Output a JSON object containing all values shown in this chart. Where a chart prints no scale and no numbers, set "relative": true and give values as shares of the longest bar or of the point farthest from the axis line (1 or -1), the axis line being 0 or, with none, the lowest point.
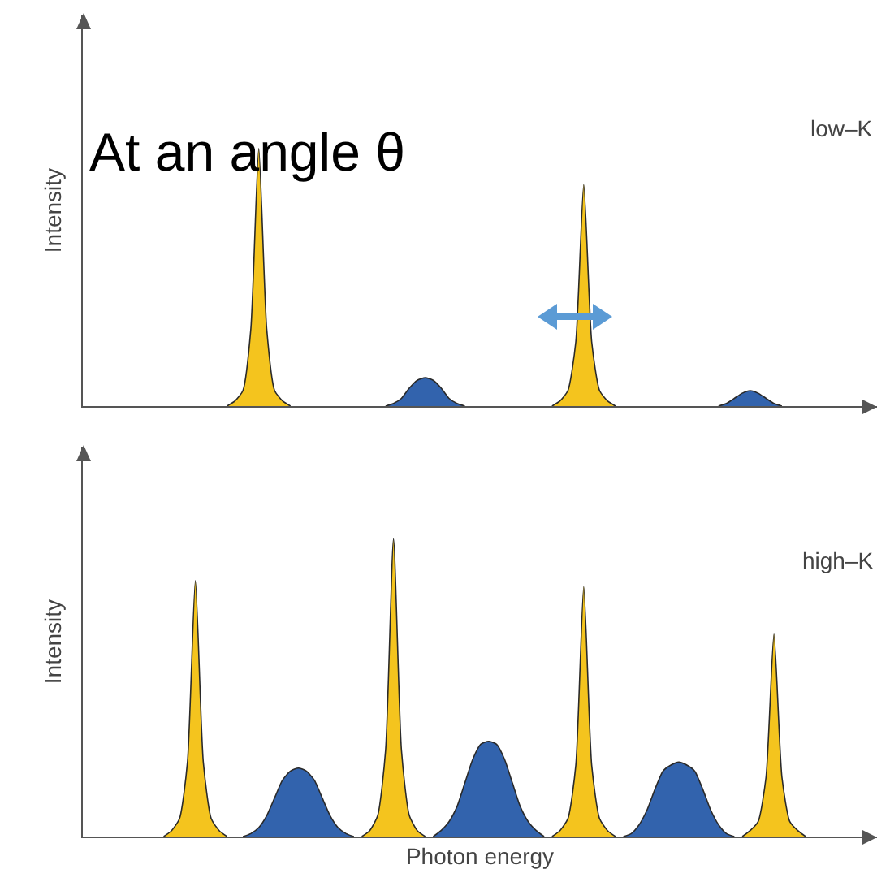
{
  "chart_data": [
    {
      "type": "area",
      "relative": true,
      "ylabel": "Intensity",
      "annotations": [
        "low–K",
        "At an angle θ"
      ],
      "categories": [
        null,
        null,
        null,
        null,
        null,
        null,
        null,
        null,
        null,
        null,
        null,
        null,
        null,
        null,
        null,
        null,
        null,
        null,
        null,
        null,
        null,
        null,
        null,
        null,
        null,
        null,
        null,
        null,
        null,
        null,
        null,
        null,
        null,
        null,
        null,
        null,
        null,
        null,
        null,
        null,
        null,
        null,
        null,
        null,
        null,
        null,
        null,
        null,
        null,
        null,
        null,
        null,
        null,
        null,
        null,
        null,
        null,
        null,
        null,
        null,
        null,
        null,
        null,
        null,
        null,
        null,
        null,
        null,
        null,
        null,
        null,
        null,
        null,
        null,
        null,
        null,
        null,
        null,
        null,
        null,
        null,
        null,
        null,
        null,
        null,
        null,
        null,
        null,
        null,
        null,
        null,
        null,
        null,
        null,
        null,
        null,
        null,
        null,
        null,
        null
      ],
      "series": [
        {
          "color": "#f4c41e",
          "values": [
            null,
            null,
            null,
            null,
            null,
            null,
            null,
            null,
            null,
            null,
            null,
            null,
            null,
            null,
            null,
            null,
            null,
            0,
            0.02,
            0.06,
            0.3,
            1,
            0.3,
            0.06,
            0.02,
            0,
            null,
            null,
            null,
            null,
            null,
            null,
            null,
            null,
            null,
            null,
            null,
            null,
            null,
            null,
            null,
            null,
            null,
            null,
            null,
            null,
            null,
            null,
            null,
            null,
            null,
            null,
            null,
            null,
            null,
            null,
            null,
            null,
            0,
            0.02,
            0.06,
            0.25,
            0.86,
            0.25,
            0.06,
            0.02,
            0,
            null,
            null,
            null,
            null,
            null,
            null,
            null,
            null,
            null,
            null,
            null,
            null,
            null,
            null,
            null,
            null,
            null,
            null,
            null,
            null,
            null,
            null,
            null,
            null,
            null,
            null,
            null,
            null,
            null,
            null,
            null,
            null,
            null
          ]
        },
        {
          "color": "#3263ad",
          "values": [
            null,
            null,
            null,
            null,
            null,
            null,
            null,
            null,
            null,
            null,
            null,
            null,
            null,
            null,
            null,
            null,
            null,
            null,
            null,
            null,
            null,
            null,
            null,
            null,
            null,
            null,
            null,
            null,
            null,
            null,
            null,
            null,
            null,
            null,
            null,
            null,
            null,
            0,
            0.01,
            0.03,
            0.07,
            0.1,
            0.11,
            0.1,
            0.07,
            0.03,
            0.01,
            0,
            null,
            null,
            null,
            null,
            null,
            null,
            null,
            null,
            null,
            null,
            null,
            null,
            null,
            null,
            null,
            null,
            null,
            null,
            null,
            null,
            null,
            null,
            null,
            null,
            null,
            null,
            null,
            null,
            null,
            null,
            null,
            0,
            0.01,
            0.03,
            0.05,
            0.06,
            0.05,
            0.03,
            0.01,
            0,
            null,
            null,
            null,
            null,
            null,
            null,
            null,
            null,
            null,
            null,
            null,
            null
          ]
        }
      ]
    },
    {
      "type": "area",
      "relative": true,
      "ylabel": "Intensity",
      "xlabel": "Photon energy",
      "annotations": [
        "high–K"
      ],
      "categories": [
        null,
        null,
        null,
        null,
        null,
        null,
        null,
        null,
        null,
        null,
        null,
        null,
        null,
        null,
        null,
        null,
        null,
        null,
        null,
        null,
        null,
        null,
        null,
        null,
        null,
        null,
        null,
        null,
        null,
        null,
        null,
        null,
        null,
        null,
        null,
        null,
        null,
        null,
        null,
        null,
        null,
        null,
        null,
        null,
        null,
        null,
        null,
        null,
        null,
        null,
        null,
        null,
        null,
        null,
        null,
        null,
        null,
        null,
        null,
        null,
        null,
        null,
        null,
        null,
        null,
        null,
        null,
        null,
        null,
        null,
        null,
        null,
        null,
        null,
        null,
        null,
        null,
        null,
        null,
        null,
        null,
        null,
        null,
        null,
        null,
        null,
        null,
        null,
        null,
        null,
        null,
        null,
        null,
        null,
        null,
        null,
        null,
        null,
        null,
        null
      ],
      "series": [
        {
          "color": "#f4c41e",
          "values": [
            null,
            null,
            null,
            null,
            null,
            null,
            null,
            null,
            null,
            0,
            0.02,
            0.06,
            0.25,
            0.86,
            0.25,
            0.06,
            0.02,
            0,
            null,
            null,
            null,
            null,
            null,
            null,
            null,
            null,
            null,
            null,
            null,
            null,
            null,
            null,
            null,
            null,
            0,
            0.02,
            0.07,
            0.29,
            1,
            0.29,
            0.07,
            0.02,
            0,
            null,
            null,
            null,
            null,
            null,
            null,
            null,
            null,
            null,
            null,
            null,
            null,
            null,
            null,
            null,
            0,
            0.02,
            0.06,
            0.24,
            0.84,
            0.24,
            0.06,
            0.02,
            0,
            null,
            null,
            null,
            null,
            null,
            null,
            null,
            null,
            null,
            null,
            null,
            null,
            null,
            null,
            null,
            0,
            0.02,
            0.05,
            0.2,
            0.68,
            0.2,
            0.05,
            0.02,
            0,
            null,
            null,
            null,
            null,
            null,
            null,
            null,
            null,
            null
          ]
        },
        {
          "color": "#3263ad",
          "values": [
            null,
            null,
            null,
            null,
            null,
            null,
            null,
            null,
            null,
            null,
            null,
            null,
            null,
            null,
            null,
            null,
            null,
            null,
            null,
            0,
            0.01,
            0.03,
            0.07,
            0.13,
            0.19,
            0.22,
            0.23,
            0.22,
            0.19,
            0.13,
            0.07,
            0.03,
            0.01,
            0,
            null,
            null,
            null,
            null,
            null,
            null,
            null,
            null,
            null,
            0,
            0.02,
            0.05,
            0.1,
            0.18,
            0.26,
            0.31,
            0.32,
            0.31,
            0.26,
            0.18,
            0.1,
            0.05,
            0.02,
            0,
            null,
            null,
            null,
            null,
            null,
            null,
            null,
            null,
            null,
            0,
            0.01,
            0.04,
            0.09,
            0.16,
            0.22,
            0.24,
            0.25,
            0.24,
            0.22,
            0.16,
            0.09,
            0.04,
            0.01,
            0,
            null,
            null,
            null,
            null,
            null,
            null,
            null,
            null,
            null,
            null,
            null,
            null,
            null,
            null,
            null,
            null,
            null,
            null
          ]
        }
      ]
    }
  ]
}
